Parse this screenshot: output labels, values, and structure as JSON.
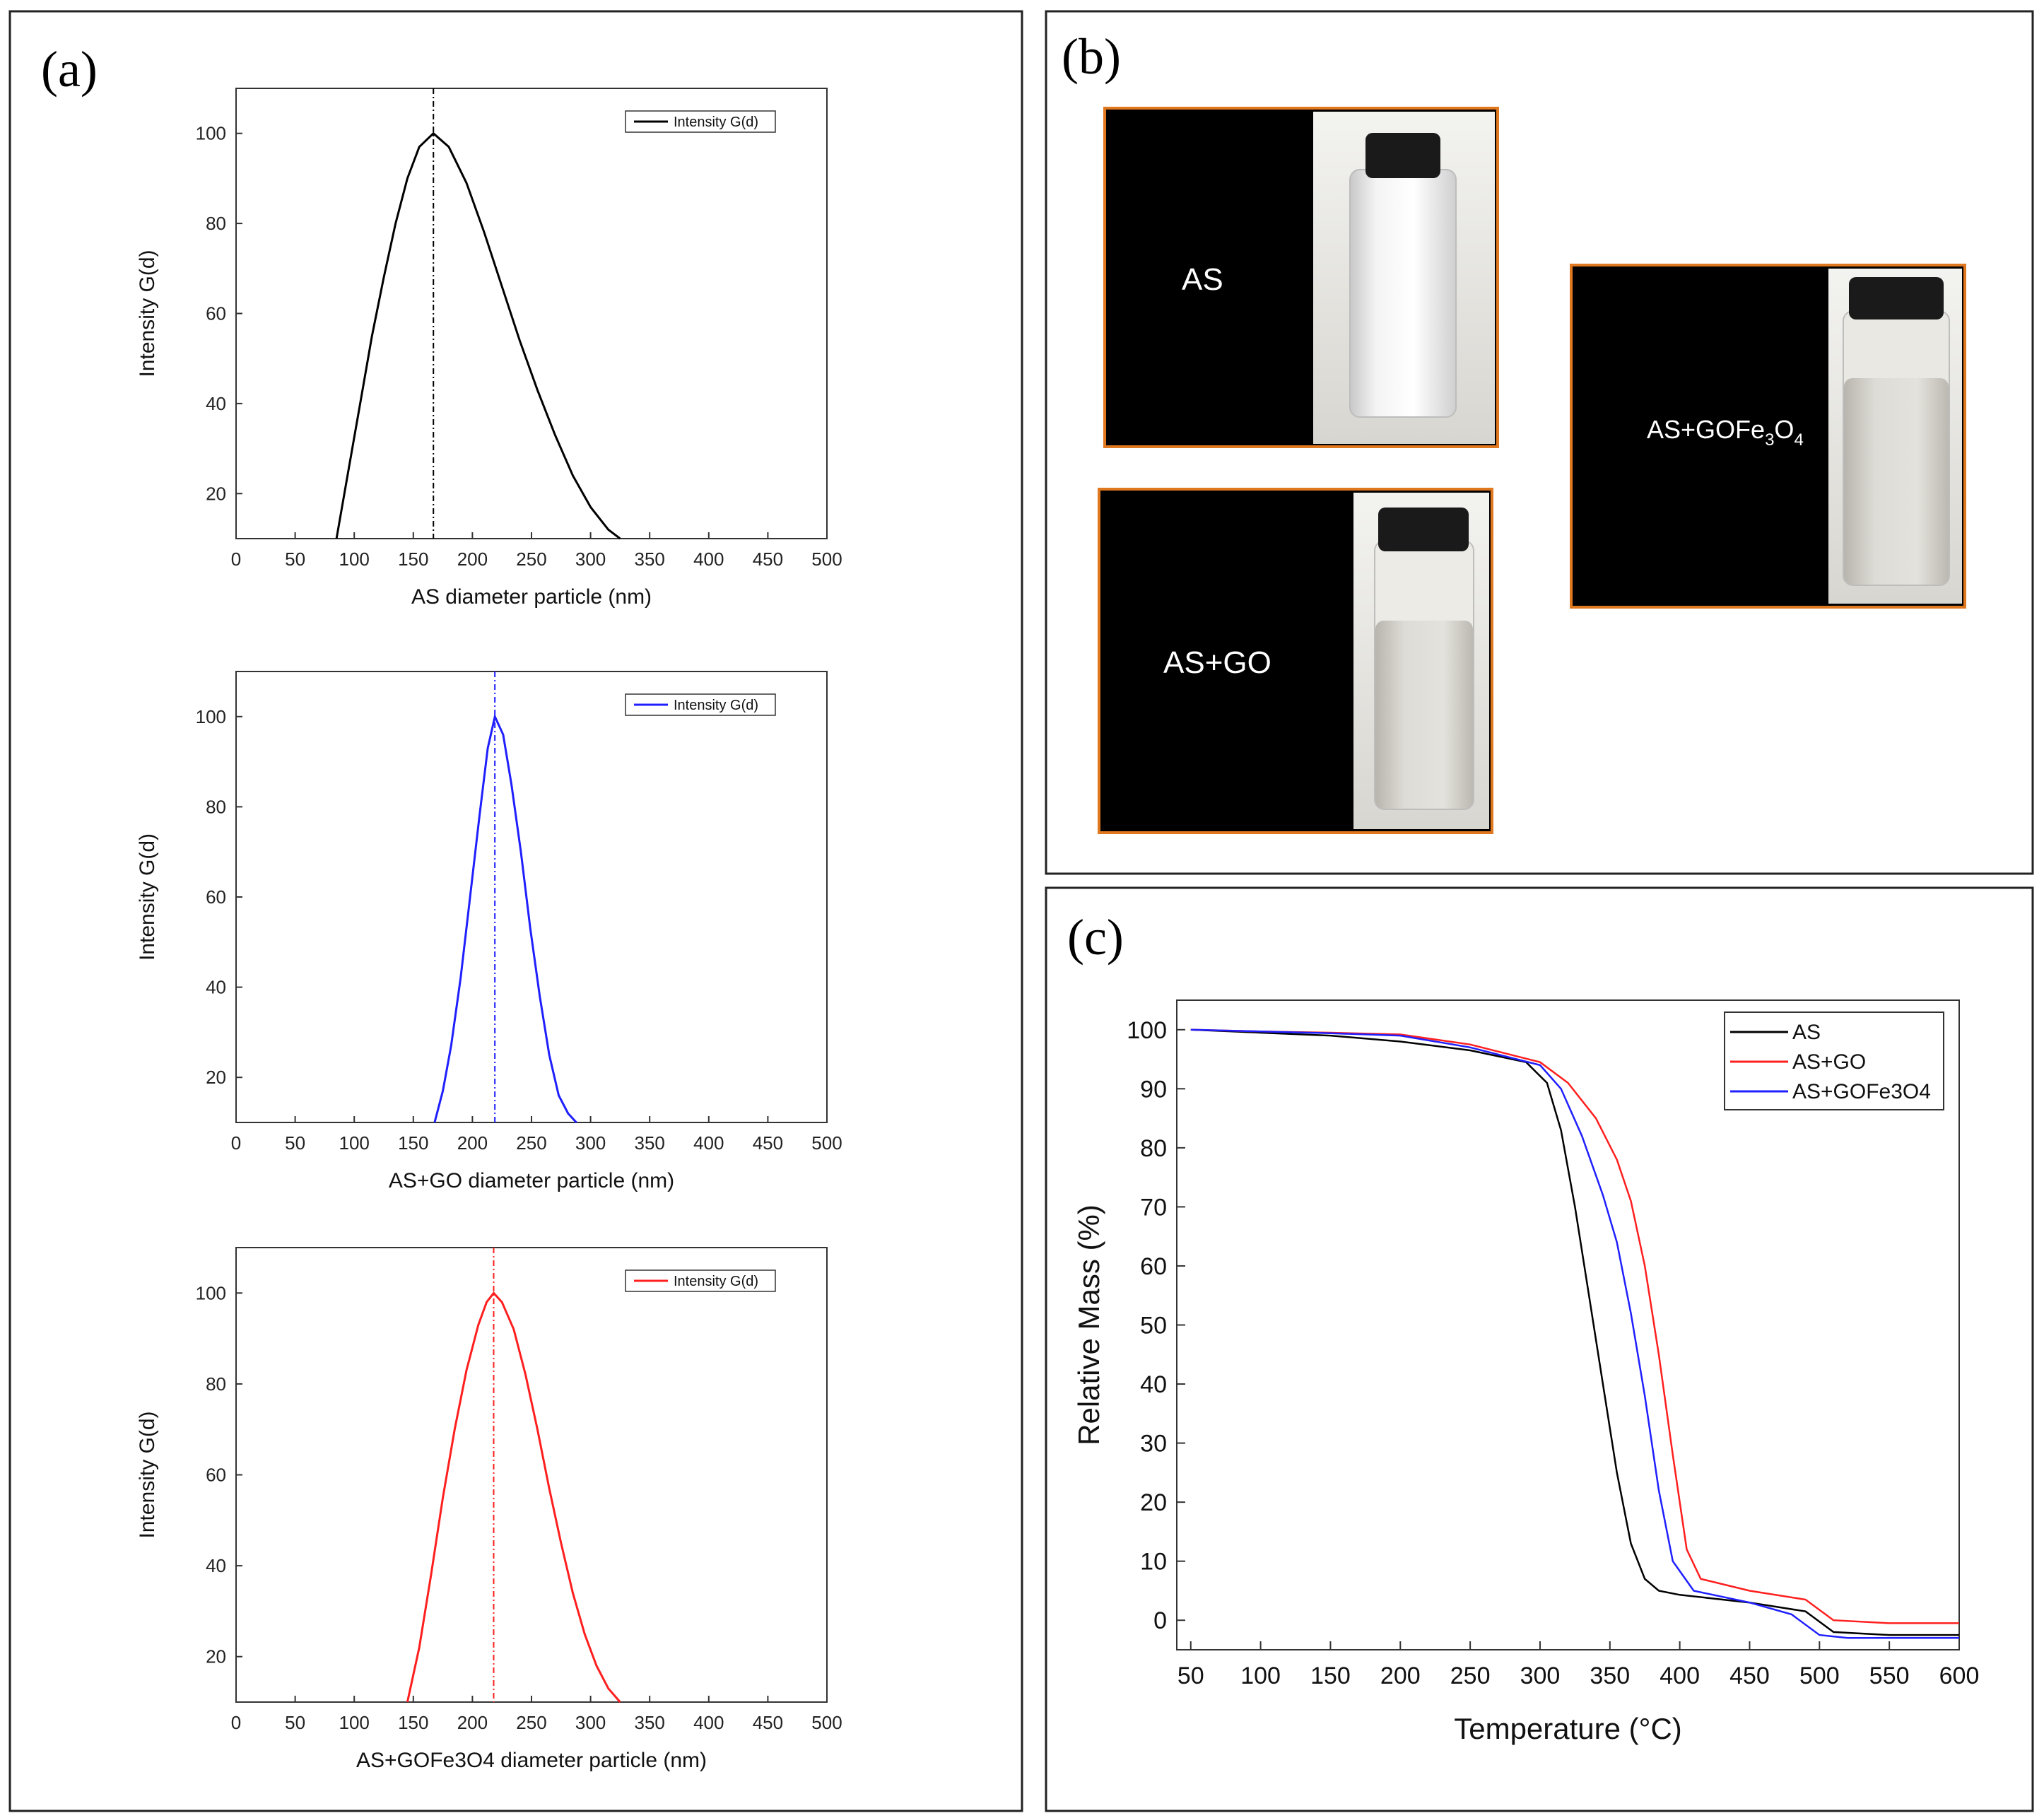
{
  "panels": {
    "a": {
      "letter": "(a)"
    },
    "b": {
      "letter": "(b)"
    },
    "c": {
      "letter": "(c)"
    }
  },
  "photos": [
    {
      "label": "AS"
    },
    {
      "label": "AS+GO"
    },
    {
      "label_parts": [
        "AS+GOFe",
        "3",
        "O",
        "4"
      ]
    }
  ],
  "colors": {
    "black": "#000000",
    "blue": "#1f1fff",
    "red": "#ff1f1f",
    "photo_border": "#e07820"
  },
  "chart_data": [
    {
      "type": "line",
      "title": "",
      "xlabel": "AS diameter particle (nm)",
      "ylabel": "Intensity G(d)",
      "xlim": [
        0,
        500
      ],
      "ylim": [
        10,
        110
      ],
      "xticks": [
        0,
        50,
        100,
        150,
        200,
        250,
        300,
        350,
        400,
        450,
        500
      ],
      "yticks": [
        20,
        40,
        60,
        80,
        100
      ],
      "legend": "Intensity G(d)",
      "legend_position": "top-right",
      "peak": 167,
      "color": "#000000",
      "x": [
        85,
        95,
        105,
        115,
        125,
        135,
        145,
        155,
        167,
        180,
        195,
        210,
        225,
        240,
        255,
        270,
        285,
        300,
        315,
        325
      ],
      "y": [
        10,
        25,
        40,
        55,
        68,
        80,
        90,
        97,
        100,
        97,
        89,
        78,
        66,
        54,
        43,
        33,
        24,
        17,
        12,
        10
      ]
    },
    {
      "type": "line",
      "title": "",
      "xlabel": "AS+GO diameter particle (nm)",
      "ylabel": "Intensity G(d)",
      "xlim": [
        0,
        500
      ],
      "ylim": [
        10,
        110
      ],
      "xticks": [
        0,
        50,
        100,
        150,
        200,
        250,
        300,
        350,
        400,
        450,
        500
      ],
      "yticks": [
        20,
        40,
        60,
        80,
        100
      ],
      "legend": "Intensity G(d)",
      "legend_position": "top-right",
      "peak": 219,
      "color": "#1f1fff",
      "x": [
        168,
        175,
        182,
        190,
        198,
        206,
        213,
        219,
        226,
        233,
        241,
        249,
        257,
        265,
        273,
        281,
        288
      ],
      "y": [
        10,
        17,
        27,
        42,
        60,
        78,
        93,
        100,
        96,
        85,
        70,
        53,
        38,
        25,
        16,
        12,
        10
      ]
    },
    {
      "type": "line",
      "title": "",
      "xlabel": "AS+GOFe3O4 diameter particle (nm)",
      "ylabel": "Intensity G(d)",
      "xlim": [
        0,
        500
      ],
      "ylim": [
        10,
        110
      ],
      "xticks": [
        0,
        50,
        100,
        150,
        200,
        250,
        300,
        350,
        400,
        450,
        500
      ],
      "yticks": [
        20,
        40,
        60,
        80,
        100
      ],
      "legend": "Intensity G(d)",
      "legend_position": "top-right",
      "peak": 218,
      "color": "#ff1f1f",
      "x": [
        145,
        155,
        165,
        175,
        185,
        195,
        205,
        212,
        218,
        225,
        235,
        245,
        255,
        265,
        275,
        285,
        295,
        305,
        315,
        325
      ],
      "y": [
        10,
        22,
        38,
        55,
        70,
        83,
        93,
        98,
        100,
        98,
        92,
        82,
        70,
        57,
        45,
        34,
        25,
        18,
        13,
        10
      ]
    },
    {
      "type": "line",
      "title": "",
      "xlabel": "Temperature (°C)",
      "ylabel": "Relative Mass (%)",
      "xlim": [
        40,
        600
      ],
      "ylim": [
        -5,
        105
      ],
      "xticks": [
        50,
        100,
        150,
        200,
        250,
        300,
        350,
        400,
        450,
        500,
        550,
        600
      ],
      "yticks": [
        0,
        10,
        20,
        30,
        40,
        50,
        60,
        70,
        80,
        90,
        100
      ],
      "legend_position": "top-right",
      "series": [
        {
          "name": "AS",
          "color": "#000000",
          "x": [
            50,
            100,
            150,
            200,
            250,
            290,
            305,
            315,
            325,
            335,
            345,
            355,
            365,
            375,
            385,
            400,
            450,
            490,
            510,
            550,
            600
          ],
          "y": [
            100,
            99.5,
            99,
            98,
            96.5,
            94.5,
            91,
            83,
            70,
            55,
            40,
            25,
            13,
            7,
            5,
            4.3,
            3,
            1.5,
            -2,
            -2.5,
            -2.5
          ]
        },
        {
          "name": "AS+GO",
          "color": "#ff1f1f",
          "x": [
            50,
            100,
            150,
            200,
            250,
            300,
            320,
            340,
            355,
            365,
            375,
            385,
            395,
            405,
            415,
            450,
            490,
            510,
            550,
            600
          ],
          "y": [
            100,
            99.7,
            99.5,
            99.2,
            97.5,
            94.5,
            91,
            85,
            78,
            71,
            60,
            45,
            28,
            12,
            7,
            5,
            3.5,
            0,
            -0.5,
            -0.5
          ]
        },
        {
          "name": "AS+GOFe3O4",
          "color": "#1f1fff",
          "x": [
            50,
            100,
            150,
            200,
            250,
            300,
            315,
            330,
            345,
            355,
            365,
            375,
            385,
            395,
            410,
            450,
            480,
            500,
            520,
            550,
            600
          ],
          "y": [
            100,
            99.7,
            99.4,
            99,
            97,
            94,
            90,
            82,
            72,
            64,
            52,
            38,
            22,
            10,
            5,
            3,
            1,
            -2.5,
            -3,
            -3,
            -3
          ]
        }
      ]
    }
  ]
}
